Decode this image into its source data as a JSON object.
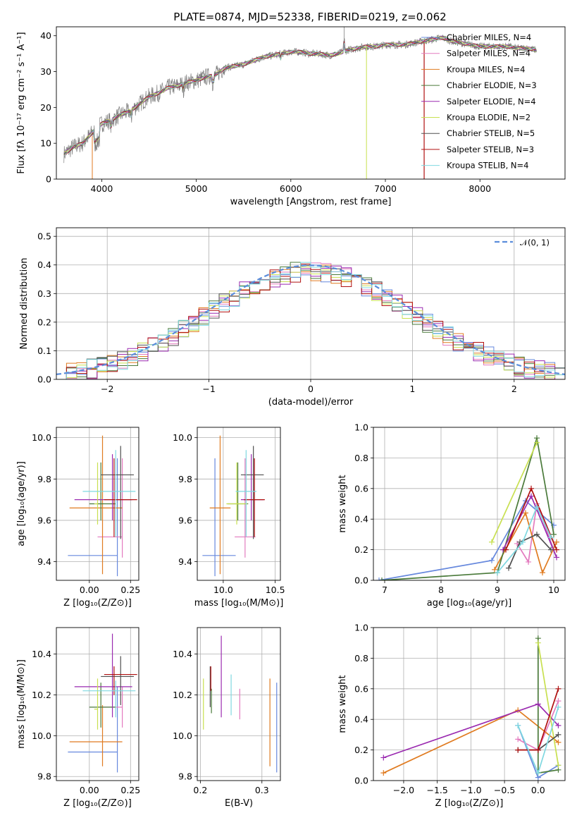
{
  "figure": {
    "title": "PLATE=0874, MJD=52338, FIBERID=0219, z=0.062"
  },
  "colors": {
    "data": "#7f7f7f",
    "gauss": "#5b8ddb",
    "grid": "#b0b0b0",
    "models": [
      "#6688dd",
      "#e37bbf",
      "#e07b20",
      "#4a7a3a",
      "#9a2ab0",
      "#c8e050",
      "#505050",
      "#b01010",
      "#7fd8e0"
    ]
  },
  "chart_data": [
    {
      "id": "spectrum",
      "type": "line",
      "xlabel": "wavelength [Angstrom, rest frame]",
      "ylabel": "Flux [fλ 10⁻¹⁷ erg cm⁻² s⁻¹ A⁻¹]",
      "xlim": [
        3520,
        8900
      ],
      "ylim": [
        0,
        42.5
      ],
      "xticks": [
        4000,
        5000,
        6000,
        7000,
        8000
      ],
      "yticks": [
        0,
        10,
        20,
        30,
        40
      ],
      "grid": false,
      "legend": "right",
      "continuum": [
        [
          3600,
          7
        ],
        [
          3700,
          9
        ],
        [
          3800,
          10
        ],
        [
          3900,
          13
        ],
        [
          4000,
          15.5
        ],
        [
          4100,
          16.5
        ],
        [
          4200,
          18
        ],
        [
          4300,
          19
        ],
        [
          4400,
          21
        ],
        [
          4500,
          23
        ],
        [
          4600,
          24
        ],
        [
          4700,
          25.5
        ],
        [
          4800,
          26
        ],
        [
          4900,
          27
        ],
        [
          5000,
          27.5
        ],
        [
          5100,
          28.5
        ],
        [
          5200,
          29
        ],
        [
          5300,
          31
        ],
        [
          5400,
          31.5
        ],
        [
          5500,
          32
        ],
        [
          5600,
          33
        ],
        [
          5700,
          34
        ],
        [
          5800,
          34.5
        ],
        [
          5900,
          35
        ],
        [
          6000,
          35.5
        ],
        [
          6100,
          35.5
        ],
        [
          6200,
          35
        ],
        [
          6300,
          35
        ],
        [
          6400,
          34.5
        ],
        [
          6500,
          35
        ],
        [
          6600,
          36
        ],
        [
          6700,
          36.5
        ],
        [
          6800,
          37
        ],
        [
          6900,
          37
        ],
        [
          7000,
          37.5
        ],
        [
          7100,
          37.5
        ],
        [
          7200,
          37.5
        ],
        [
          7300,
          38
        ],
        [
          7400,
          38.5
        ],
        [
          7500,
          39
        ],
        [
          7600,
          39.5
        ],
        [
          7700,
          38.5
        ],
        [
          7800,
          38
        ],
        [
          7900,
          37.5
        ],
        [
          8000,
          37
        ],
        [
          8100,
          37
        ],
        [
          8200,
          37
        ],
        [
          8300,
          37
        ],
        [
          8400,
          36.5
        ],
        [
          8500,
          36.5
        ],
        [
          8600,
          36
        ]
      ],
      "series": [
        {
          "name": "Chabrier MILES, N_SSP=4"
        },
        {
          "name": "Salpeter MILES, N_SSP=4"
        },
        {
          "name": "Kroupa MILES, N_SSP=4"
        },
        {
          "name": "Chabrier ELODIE, N_SSP=3"
        },
        {
          "name": "Salpeter ELODIE, N_SSP=4"
        },
        {
          "name": "Kroupa ELODIE, N_SSP=2"
        },
        {
          "name": "Chabrier STELIB, N_SSP=5"
        },
        {
          "name": "Salpeter STELIB, N_SSP=3"
        },
        {
          "name": "Kroupa STELIB, N_SSP=4"
        }
      ]
    },
    {
      "id": "residuals",
      "type": "histogram",
      "xlabel": "(data-model)/error",
      "ylabel": "Normed distribution",
      "xlim": [
        -2.5,
        2.5
      ],
      "ylim": [
        0,
        0.53
      ],
      "xticks": [
        -2,
        -1,
        0,
        1,
        2
      ],
      "yticks": [
        0.0,
        0.1,
        0.2,
        0.3,
        0.4,
        0.5
      ],
      "grid": true,
      "legend": "top-right",
      "gauss_label": "𝒩(0, 1)",
      "bin_width": 0.1
    },
    {
      "id": "age-vs-Z",
      "type": "errorbar",
      "xlabel": "Z [log₁₀(Z/Z⊙)]",
      "ylabel": "age  [log₁₀(age/yr)]",
      "xlim": [
        -0.2,
        0.3
      ],
      "ylim": [
        9.31,
        10.05
      ],
      "xticks": [
        0.0,
        0.25
      ],
      "yticks": [
        9.4,
        9.6,
        9.8,
        10.0
      ],
      "grid": true,
      "points": [
        {
          "x": 0.17,
          "xerr": [
            0.3,
            0.0
          ],
          "y": 9.43,
          "yerr": [
            0.1,
            0.47
          ]
        },
        {
          "x": 0.2,
          "xerr": [
            0.15,
            0.0
          ],
          "y": 9.52,
          "yerr": [
            0.1,
            0.38
          ]
        },
        {
          "x": 0.08,
          "xerr": [
            0.2,
            0.12
          ],
          "y": 9.66,
          "yerr": [
            0.32,
            0.35
          ]
        },
        {
          "x": 0.07,
          "xerr": [
            0.07,
            0.09
          ],
          "y": 9.68,
          "yerr": [
            0.08,
            0.2
          ]
        },
        {
          "x": 0.14,
          "xerr": [
            0.23,
            0.12
          ],
          "y": 9.7,
          "yerr": [
            0.1,
            0.22
          ]
        },
        {
          "x": 0.05,
          "xerr": [
            0.02,
            0.0
          ],
          "y": 9.68,
          "yerr": [
            0.1,
            0.2
          ]
        },
        {
          "x": 0.19,
          "xerr": [
            0.12,
            0.08
          ],
          "y": 9.82,
          "yerr": [
            0.31,
            0.14
          ]
        },
        {
          "x": 0.15,
          "xerr": [
            0.06,
            0.14
          ],
          "y": 9.7,
          "yerr": [
            0.18,
            0.2
          ]
        },
        {
          "x": 0.16,
          "xerr": [
            0.2,
            0.12
          ],
          "y": 9.74,
          "yerr": [
            0.22,
            0.2
          ]
        }
      ]
    },
    {
      "id": "age-vs-mass",
      "type": "errorbar",
      "xlabel": "mass [log₁₀(M/M⊙)]",
      "ylabel": "",
      "xlim": [
        9.75,
        10.55
      ],
      "ylim": [
        9.31,
        10.05
      ],
      "xticks": [
        10.0,
        10.5
      ],
      "yticks": [
        9.4,
        9.6,
        9.8,
        10.0
      ],
      "grid": true,
      "points": [
        {
          "x": 9.92,
          "xerr": [
            0.12,
            0.2
          ],
          "y": 9.43,
          "yerr": [
            0.1,
            0.47
          ]
        },
        {
          "x": 10.21,
          "xerr": [
            0.1,
            0.1
          ],
          "y": 9.52,
          "yerr": [
            0.1,
            0.38
          ]
        },
        {
          "x": 9.97,
          "xerr": [
            0.1,
            0.1
          ],
          "y": 9.66,
          "yerr": [
            0.32,
            0.35
          ]
        },
        {
          "x": 10.14,
          "xerr": [
            0.1,
            0.1
          ],
          "y": 9.68,
          "yerr": [
            0.08,
            0.2
          ]
        },
        {
          "x": 10.27,
          "xerr": [
            0.1,
            0.12
          ],
          "y": 9.7,
          "yerr": [
            0.1,
            0.22
          ]
        },
        {
          "x": 10.13,
          "xerr": [
            0.1,
            0.1
          ],
          "y": 9.68,
          "yerr": [
            0.1,
            0.2
          ]
        },
        {
          "x": 10.29,
          "xerr": [
            0.12,
            0.1
          ],
          "y": 9.82,
          "yerr": [
            0.31,
            0.14
          ]
        },
        {
          "x": 10.3,
          "xerr": [
            0.1,
            0.1
          ],
          "y": 9.7,
          "yerr": [
            0.18,
            0.2
          ]
        },
        {
          "x": 10.22,
          "xerr": [
            0.1,
            0.1
          ],
          "y": 9.74,
          "yerr": [
            0.22,
            0.2
          ]
        }
      ]
    },
    {
      "id": "weight-vs-age",
      "type": "line",
      "xlabel": "age  [log₁₀(age/yr)]",
      "ylabel": "mass weight",
      "xlim": [
        6.8,
        10.2
      ],
      "ylim": [
        0,
        1.0
      ],
      "xticks": [
        7,
        8,
        9,
        10
      ],
      "yticks": [
        0.0,
        0.2,
        0.4,
        0.6,
        0.8,
        1.0
      ],
      "grid": true,
      "series": [
        {
          "points": [
            [
              6.9,
              0.0
            ],
            [
              8.9,
              0.13
            ],
            [
              9.5,
              0.52
            ],
            [
              10.0,
              0.36
            ]
          ]
        },
        {
          "points": [
            [
              9.35,
              0.24
            ],
            [
              9.55,
              0.12
            ],
            [
              9.7,
              0.5
            ],
            [
              10.0,
              0.2
            ]
          ]
        },
        {
          "points": [
            [
              8.95,
              0.07
            ],
            [
              9.5,
              0.44
            ],
            [
              9.8,
              0.05
            ],
            [
              10.05,
              0.25
            ]
          ]
        },
        {
          "points": [
            [
              6.95,
              0.0
            ],
            [
              9.0,
              0.05
            ],
            [
              9.7,
              0.93
            ],
            [
              10.0,
              0.3
            ]
          ]
        },
        {
          "points": [
            [
              9.1,
              0.2
            ],
            [
              9.6,
              0.55
            ],
            [
              10.05,
              0.15
            ]
          ]
        },
        {
          "points": [
            [
              8.9,
              0.25
            ],
            [
              9.7,
              0.9
            ]
          ]
        },
        {
          "points": [
            [
              9.2,
              0.08
            ],
            [
              9.4,
              0.25
            ],
            [
              9.7,
              0.3
            ],
            [
              9.95,
              0.2
            ]
          ]
        },
        {
          "points": [
            [
              9.15,
              0.2
            ],
            [
              9.6,
              0.6
            ],
            [
              10.05,
              0.2
            ]
          ]
        },
        {
          "points": [
            [
              9.0,
              0.05
            ],
            [
              9.45,
              0.25
            ],
            [
              9.7,
              0.48
            ],
            [
              9.95,
              0.28
            ]
          ]
        }
      ]
    },
    {
      "id": "mass-vs-Z",
      "type": "errorbar",
      "xlabel": "Z [log₁₀(Z/Z⊙)]",
      "ylabel": "mass [log₁₀(M/M⊙)]",
      "xlim": [
        -0.2,
        0.3
      ],
      "ylim": [
        9.78,
        10.53
      ],
      "xticks": [
        0.0,
        0.25
      ],
      "yticks": [
        9.8,
        10.0,
        10.2,
        10.4
      ],
      "grid": true,
      "points": [
        {
          "x": 0.17,
          "xerr": [
            0.3,
            0.0
          ],
          "y": 9.92,
          "yerr": [
            0.1,
            0.32
          ]
        },
        {
          "x": 0.2,
          "xerr": [
            0.15,
            0.0
          ],
          "y": 10.14,
          "yerr": [
            0.1,
            0.1
          ]
        },
        {
          "x": 0.08,
          "xerr": [
            0.2,
            0.12
          ],
          "y": 9.97,
          "yerr": [
            0.12,
            0.18
          ]
        },
        {
          "x": 0.07,
          "xerr": [
            0.07,
            0.09
          ],
          "y": 10.14,
          "yerr": [
            0.1,
            0.12
          ]
        },
        {
          "x": 0.14,
          "xerr": [
            0.23,
            0.12
          ],
          "y": 10.24,
          "yerr": [
            0.15,
            0.26
          ]
        },
        {
          "x": 0.05,
          "xerr": [
            0.02,
            0.0
          ],
          "y": 10.13,
          "yerr": [
            0.1,
            0.15
          ]
        },
        {
          "x": 0.19,
          "xerr": [
            0.12,
            0.08
          ],
          "y": 10.29,
          "yerr": [
            0.14,
            0.1
          ]
        },
        {
          "x": 0.15,
          "xerr": [
            0.06,
            0.14
          ],
          "y": 10.3,
          "yerr": [
            0.1,
            0.04
          ]
        },
        {
          "x": 0.16,
          "xerr": [
            0.2,
            0.12
          ],
          "y": 10.22,
          "yerr": [
            0.13,
            0.05
          ]
        }
      ]
    },
    {
      "id": "mass-vs-ebv",
      "type": "errorbar",
      "xlabel": "E(B-V)",
      "ylabel": "",
      "xlim": [
        0.195,
        0.33
      ],
      "ylim": [
        9.78,
        10.53
      ],
      "xticks": [
        0.2,
        0.3
      ],
      "yticks": [
        9.8,
        10.0,
        10.2,
        10.4
      ],
      "grid": true,
      "points": [
        {
          "x": 0.324,
          "y": 10.04,
          "yerr": [
            0.22,
            0.22
          ]
        },
        {
          "x": 0.264,
          "y": 10.14,
          "yerr": [
            0.06,
            0.09
          ]
        },
        {
          "x": 0.313,
          "y": 10.05,
          "yerr": [
            0.2,
            0.23
          ]
        },
        {
          "x": 0.218,
          "y": 10.21,
          "yerr": [
            0.1,
            0.02
          ]
        },
        {
          "x": 0.234,
          "y": 10.29,
          "yerr": [
            0.2,
            0.2
          ]
        },
        {
          "x": 0.205,
          "y": 10.15,
          "yerr": [
            0.12,
            0.13
          ]
        },
        {
          "x": 0.216,
          "y": 10.24,
          "yerr": [
            0.1,
            0.1
          ]
        },
        {
          "x": 0.217,
          "y": 10.27,
          "yerr": [
            0.05,
            0.07
          ]
        },
        {
          "x": 0.25,
          "y": 10.18,
          "yerr": [
            0.08,
            0.12
          ]
        }
      ]
    },
    {
      "id": "weight-vs-Z",
      "type": "line",
      "xlabel": "Z [log₁₀(Z/Z⊙)]",
      "ylabel": "mass weight",
      "xlim": [
        -2.45,
        0.4
      ],
      "ylim": [
        0,
        1.0
      ],
      "xticks": [
        -2.0,
        -1.5,
        -1.0,
        -0.5,
        0.0
      ],
      "yticks": [
        0.0,
        0.2,
        0.4,
        0.6,
        0.8,
        1.0
      ],
      "grid": true,
      "series": [
        {
          "points": [
            [
              -0.3,
              0.36
            ],
            [
              0.0,
              0.02
            ],
            [
              0.3,
              0.1
            ]
          ]
        },
        {
          "points": [
            [
              -0.3,
              0.27
            ],
            [
              0.0,
              0.2
            ],
            [
              0.3,
              0.52
            ]
          ]
        },
        {
          "points": [
            [
              -2.3,
              0.05
            ],
            [
              -0.3,
              0.46
            ],
            [
              0.3,
              0.25
            ]
          ]
        },
        {
          "points": [
            [
              0.0,
              0.93
            ],
            [
              0.0,
              0.05
            ],
            [
              0.3,
              0.07
            ]
          ]
        },
        {
          "points": [
            [
              -2.3,
              0.15
            ],
            [
              0.0,
              0.5
            ],
            [
              0.3,
              0.36
            ]
          ]
        },
        {
          "points": [
            [
              0.0,
              0.9
            ],
            [
              0.3,
              0.1
            ]
          ]
        },
        {
          "points": [
            [
              -0.3,
              0.2
            ],
            [
              0.0,
              0.2
            ],
            [
              0.3,
              0.3
            ]
          ]
        },
        {
          "points": [
            [
              -0.3,
              0.2
            ],
            [
              0.0,
              0.2
            ],
            [
              0.3,
              0.6
            ]
          ]
        },
        {
          "points": [
            [
              -0.3,
              0.36
            ],
            [
              0.0,
              0.05
            ],
            [
              0.3,
              0.48
            ]
          ]
        }
      ]
    }
  ]
}
